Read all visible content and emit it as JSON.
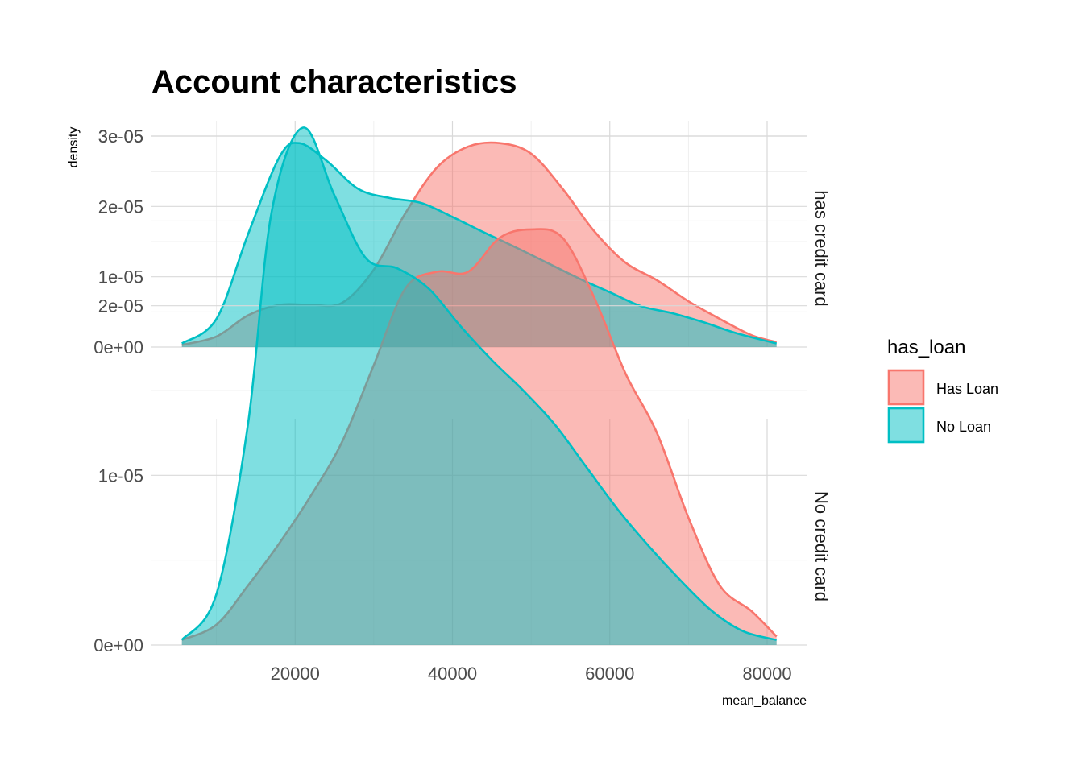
{
  "chart_data": {
    "type": "area",
    "title": "Account characteristics",
    "xlabel": "mean_balance",
    "ylabel": "density",
    "xlim": [
      0,
      82000
    ],
    "ylim": [
      0,
      3.2e-05
    ],
    "x_ticks": [
      20000,
      40000,
      60000,
      80000
    ],
    "x_tick_labels": [
      "20000",
      "40000",
      "60000",
      "80000"
    ],
    "y_ticks": [
      0,
      1e-05,
      2e-05,
      3e-05
    ],
    "y_tick_labels": [
      "0e+00",
      "1e-05",
      "2e-05",
      "3e-05"
    ],
    "grid": true,
    "legend": {
      "title": "has_loan",
      "position": "right",
      "entries": [
        {
          "label": "Has Loan",
          "fill": "#F8766D",
          "stroke": "#F8766D"
        },
        {
          "label": "No Loan",
          "fill": "#00BFC4",
          "stroke": "#00BFC4"
        }
      ]
    },
    "colors": {
      "has_loan": "#F8766D",
      "no_loan": "#00BFC4"
    },
    "facets": [
      {
        "strip": "has credit card",
        "series": [
          {
            "name": "Has Loan",
            "x": [
              5600,
              10000,
              14000,
              18000,
              22000,
              26000,
              30000,
              34000,
              38000,
              42000,
              46000,
              50000,
              54000,
              58000,
              62000,
              66000,
              70000,
              74000,
              78000,
              81200
            ],
            "y": [
              3e-07,
              1.5e-06,
              4.5e-06,
              6e-06,
              6e-06,
              6.3e-06,
              1.1e-05,
              1.9e-05,
              2.55e-05,
              2.85e-05,
              2.9e-05,
              2.75e-05,
              2.25e-05,
              1.65e-05,
              1.2e-05,
              9.5e-06,
              6.5e-06,
              4e-06,
              1.7e-06,
              7e-07
            ]
          },
          {
            "name": "No Loan",
            "x": [
              5600,
              10000,
              14000,
              18000,
              20500,
              24000,
              28000,
              32000,
              36000,
              40000,
              44000,
              48000,
              52000,
              56000,
              60000,
              64000,
              68000,
              72000,
              76000,
              81200
            ],
            "y": [
              5e-07,
              4e-06,
              1.6e-05,
              2.7e-05,
              2.9e-05,
              2.65e-05,
              2.25e-05,
              2.12e-05,
              2.05e-05,
              1.85e-05,
              1.63e-05,
              1.42e-05,
              1.2e-05,
              9.8e-06,
              7.8e-06,
              5.8e-06,
              4.8e-06,
              3.5e-06,
              2e-06,
              5e-07
            ]
          }
        ]
      },
      {
        "strip": "No credit card",
        "series": [
          {
            "name": "Has Loan",
            "x": [
              5600,
              10000,
              14000,
              18000,
              22000,
              26000,
              30000,
              34000,
              38000,
              42000,
              46000,
              50000,
              54000,
              58000,
              62000,
              66000,
              70000,
              74000,
              78000,
              81200
            ],
            "y": [
              3e-07,
              1.2e-06,
              3.5e-06,
              6e-06,
              8.8e-06,
              1.2e-05,
              1.65e-05,
              2.1e-05,
              2.2e-05,
              2.2e-05,
              2.4e-05,
              2.45e-05,
              2.4e-05,
              2.05e-05,
              1.6e-05,
              1.25e-05,
              7.5e-06,
              3.5e-06,
              2e-06,
              5e-07
            ]
          },
          {
            "name": "No Loan",
            "x": [
              5600,
              10000,
              14000,
              17000,
              21000,
              25000,
              29000,
              33000,
              37000,
              41000,
              45000,
              49000,
              53000,
              57000,
              61000,
              65000,
              69000,
              73000,
              77000,
              81200
            ],
            "y": [
              3e-07,
              3e-06,
              1.3e-05,
              2.55e-05,
              3.05e-05,
              2.65e-05,
              2.28e-05,
              2.22e-05,
              2.1e-05,
              1.88e-05,
              1.68e-05,
              1.5e-05,
              1.3e-05,
              1.05e-05,
              8e-06,
              5.8e-06,
              3.8e-06,
              2e-06,
              8e-07,
              3e-07
            ]
          }
        ]
      }
    ]
  }
}
